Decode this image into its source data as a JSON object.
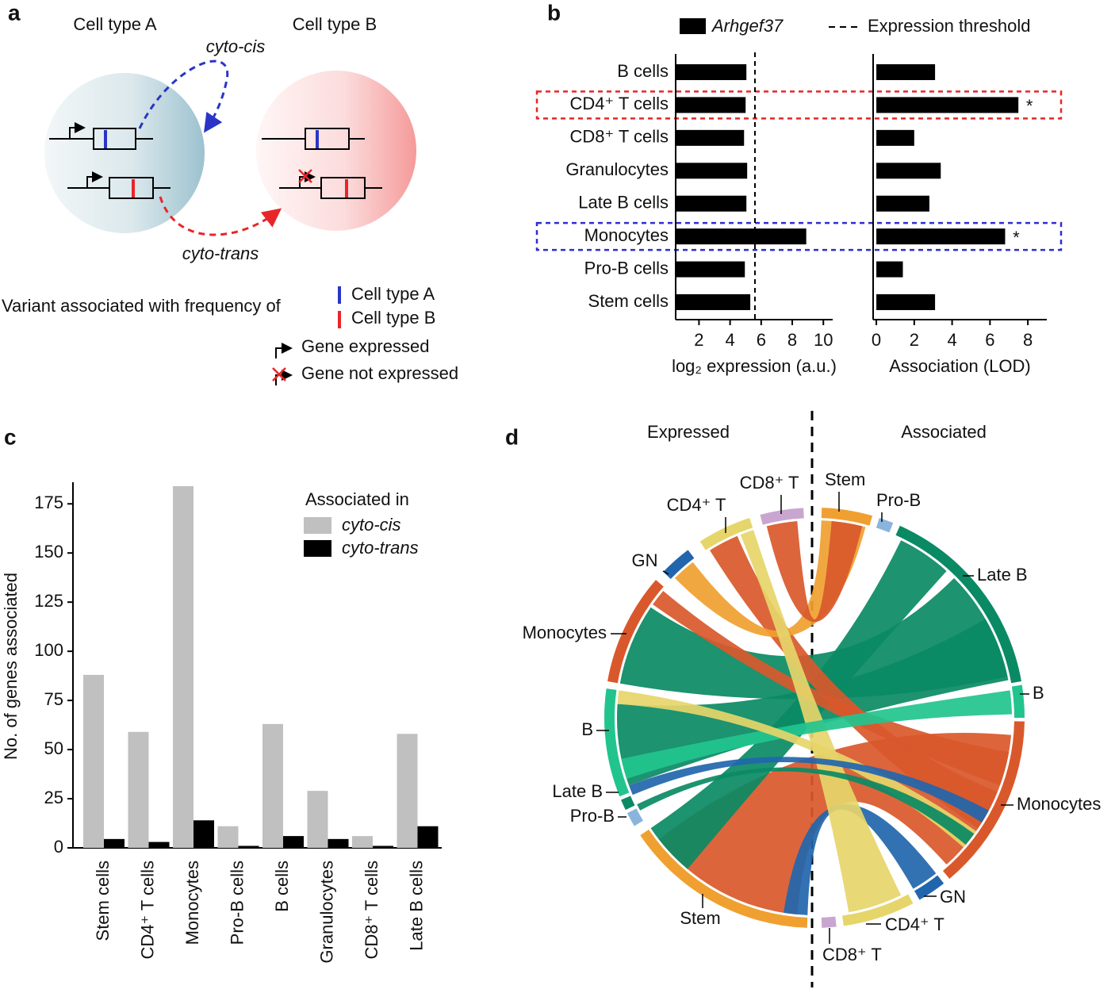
{
  "panel_labels": [
    "a",
    "b",
    "c",
    "d"
  ],
  "panel_a": {
    "cell_type_a": "Cell type A",
    "cell_type_b": "Cell type B",
    "cyto_cis": "cyto-cis",
    "cyto_trans": "cyto-trans",
    "legend_title": "Variant associated with frequency of",
    "legend": [
      "Cell type A",
      "Cell type B",
      "Gene expressed",
      "Gene not expressed"
    ]
  },
  "chart_data": [
    {
      "type": "hbar",
      "categories": [
        "B cells",
        "CD4⁺ T cells",
        "CD8⁺ T cells",
        "Granulocytes",
        "Late B cells",
        "Monocytes",
        "Pro-B cells",
        "Stem cells"
      ],
      "series": [
        {
          "name": "Arhgef37",
          "color": "#000000",
          "values": [
            5.05,
            5.0,
            4.9,
            5.1,
            5.05,
            8.9,
            4.95,
            5.3
          ]
        }
      ],
      "threshold": {
        "name": "Expression threshold",
        "value": 5.6
      },
      "x_label": "log₂ expression (a.u.)",
      "xlim": [
        0.5,
        10.6
      ],
      "xticks": [
        2,
        4,
        6,
        8,
        10
      ]
    },
    {
      "type": "hbar",
      "series": [
        {
          "color": "#000000",
          "values": [
            3.1,
            7.5,
            2.0,
            3.4,
            2.8,
            6.8,
            1.4,
            3.1
          ]
        }
      ],
      "annotations": [
        {
          "text": "*",
          "row": 1
        },
        {
          "text": "*",
          "row": 5
        }
      ],
      "highlight_rows": [
        {
          "row": 1,
          "color": "#e8262a"
        },
        {
          "row": 5,
          "color": "#2d2fd0"
        }
      ],
      "x_label": "Association (LOD)",
      "xlim": [
        -0.17,
        9
      ],
      "xticks": [
        0,
        2,
        4,
        6,
        8
      ]
    },
    {
      "type": "bar",
      "categories": [
        "Stem cells",
        "CD4⁺ T cells",
        "Monocytes",
        "Pro-B cells",
        "B cells",
        "Granulocytes",
        "CD8⁺ T cells",
        "Late B cells"
      ],
      "series": [
        {
          "name": "cyto-cis",
          "color": "#c0c0c0",
          "values": [
            88,
            59,
            184,
            11,
            63,
            29,
            6,
            58
          ]
        },
        {
          "name": "cyto-trans",
          "color": "#000000",
          "values": [
            4.5,
            3,
            14,
            1,
            6,
            4.5,
            1,
            11
          ]
        }
      ],
      "legend_title": "Associated in",
      "y_label": "No. of genes associated",
      "ylim": [
        0,
        186
      ],
      "yticks": [
        0,
        25,
        50,
        75,
        100,
        125,
        150,
        175
      ]
    }
  ],
  "panel_d": {
    "left_title": "Expressed",
    "right_title": "Associated",
    "expressed_labels": [
      "CD8⁺ T",
      "CD4⁺ T",
      "GN",
      "Monocytes",
      "B",
      "Late B",
      "Pro-B",
      "Stem"
    ],
    "associated_labels": [
      "Stem",
      "Pro-B",
      "Late B",
      "B",
      "Monocytes",
      "GN",
      "CD4⁺ T",
      "CD8⁺ T"
    ]
  }
}
